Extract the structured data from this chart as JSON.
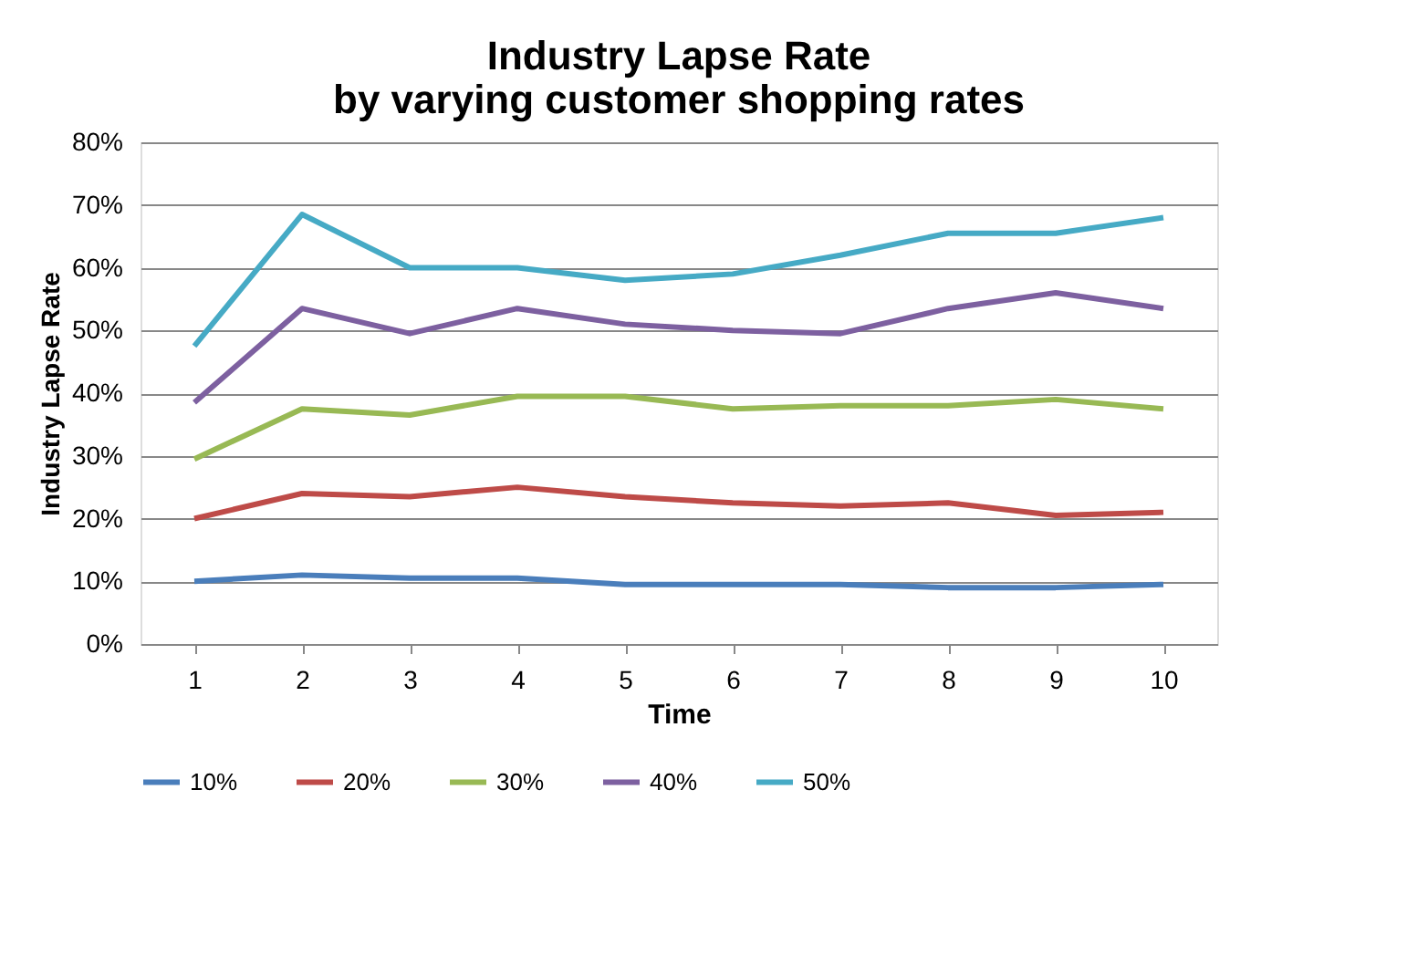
{
  "chart_data": {
    "type": "line",
    "title": "Industry Lapse Rate\nby varying customer shopping rates",
    "xlabel": "Time",
    "ylabel": "Industry Lapse Rate",
    "categories": [
      "1",
      "2",
      "3",
      "4",
      "5",
      "6",
      "7",
      "8",
      "9",
      "10"
    ],
    "series": [
      {
        "name": "10%",
        "color": "#4a7ebb",
        "values": [
          10,
          11,
          10.5,
          10.5,
          9.5,
          9.5,
          9.5,
          9,
          9,
          9.5
        ]
      },
      {
        "name": "20%",
        "color": "#be4b48",
        "values": [
          20,
          24,
          23.5,
          25,
          23.5,
          22.5,
          22,
          22.5,
          20.5,
          21
        ]
      },
      {
        "name": "30%",
        "color": "#98b954",
        "values": [
          29.5,
          37.5,
          36.5,
          39.5,
          39.5,
          37.5,
          38,
          38,
          39,
          37.5
        ]
      },
      {
        "name": "40%",
        "color": "#7d60a0",
        "values": [
          38.5,
          53.5,
          49.5,
          53.5,
          51,
          50,
          49.5,
          53.5,
          56,
          53.5
        ]
      },
      {
        "name": "50%",
        "color": "#46aac5",
        "values": [
          47.5,
          68.5,
          60,
          60,
          58,
          59,
          62,
          65.5,
          65.5,
          68
        ]
      }
    ],
    "ylim": [
      0,
      80
    ],
    "yticks": [
      {
        "value": 0,
        "label": "0%"
      },
      {
        "value": 10,
        "label": "10%"
      },
      {
        "value": 20,
        "label": "20%"
      },
      {
        "value": 30,
        "label": "30%"
      },
      {
        "value": 40,
        "label": "40%"
      },
      {
        "value": 50,
        "label": "50%"
      },
      {
        "value": 60,
        "label": "60%"
      },
      {
        "value": 70,
        "label": "70%"
      },
      {
        "value": 80,
        "label": "80%"
      }
    ],
    "grid": "y",
    "legend": "bottom",
    "marker": "none",
    "line_style": "solid"
  }
}
